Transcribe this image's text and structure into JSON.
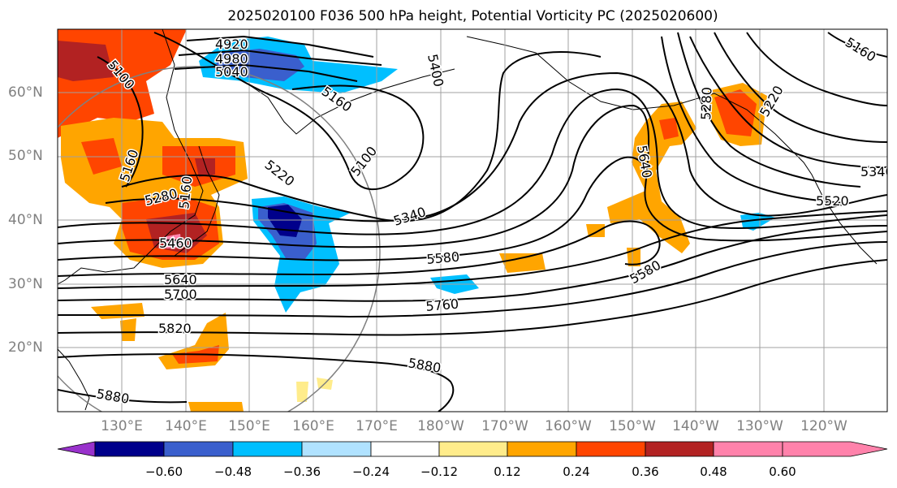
{
  "title": "2025020100 F036 500 hPa height, Potential Vorticity PC (2025020600)",
  "latitude_labels": [
    "60°N",
    "50°N",
    "40°N",
    "30°N",
    "20°N"
  ],
  "longitude_labels": [
    "130°E",
    "140°E",
    "150°E",
    "160°E",
    "170°E",
    "180°W",
    "170°W",
    "160°W",
    "150°W",
    "140°W",
    "130°W",
    "120°W"
  ],
  "contour_labels": [
    "4920",
    "4980",
    "5040",
    "5100",
    "5160",
    "5400",
    "5160",
    "5220",
    "5100",
    "5160",
    "5280",
    "5340",
    "5460",
    "5580",
    "5640",
    "5700",
    "5760",
    "5820",
    "5880",
    "5880",
    "5640",
    "5580",
    "5280",
    "5220",
    "5160",
    "5340",
    "5520"
  ],
  "colorbar": {
    "tick_labels": [
      "−0.60",
      "−0.48",
      "−0.36",
      "−0.24",
      "−0.12",
      "0.12",
      "0.24",
      "0.36",
      "0.48",
      "0.60"
    ],
    "colors": [
      "#9932CC",
      "#00008B",
      "#3A5FCD",
      "#00BFFF",
      "#B0E2FF",
      "#FFFFFF",
      "#FFEC8B",
      "#FFA500",
      "#FF4500",
      "#B22222",
      "#FF82AB"
    ]
  },
  "colors": {
    "grid": "#A0A0A0",
    "contour": "#000000",
    "ring": "#808080"
  }
}
